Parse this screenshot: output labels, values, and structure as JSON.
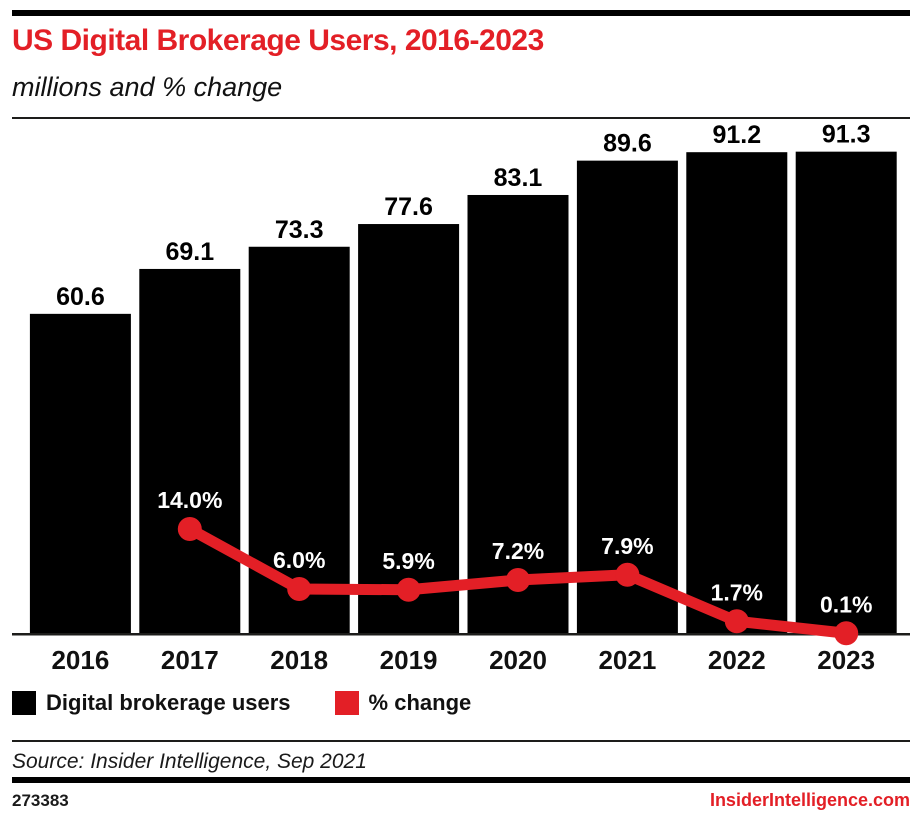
{
  "header": {
    "title": "US Digital Brokerage Users, 2016-2023",
    "subtitle": "millions and % change"
  },
  "chart_data": {
    "type": "bar",
    "categories": [
      "2016",
      "2017",
      "2018",
      "2019",
      "2020",
      "2021",
      "2022",
      "2023"
    ],
    "series": [
      {
        "name": "Digital brokerage users",
        "type": "bar",
        "unit": "millions",
        "color": "#000000",
        "values": [
          60.6,
          69.1,
          73.3,
          77.6,
          83.1,
          89.6,
          91.2,
          91.3
        ],
        "labels": [
          "60.6",
          "69.1",
          "73.3",
          "77.6",
          "83.1",
          "89.6",
          "91.2",
          "91.3"
        ]
      },
      {
        "name": "% change",
        "type": "line",
        "unit": "percent",
        "color": "#e31f26",
        "values": [
          null,
          14.0,
          6.0,
          5.9,
          7.2,
          7.9,
          1.7,
          0.1
        ],
        "labels": [
          null,
          "14.0%",
          "6.0%",
          "5.9%",
          "7.2%",
          "7.9%",
          "1.7%",
          "0.1%"
        ]
      }
    ],
    "title": "US Digital Brokerage Users, 2016-2023",
    "subtitle": "millions and % change",
    "xlabel": "",
    "ylabel": "",
    "bar_axis_range": [
      0,
      95
    ],
    "pct_axis_range": [
      0,
      20
    ],
    "grid": false,
    "legend_position": "bottom",
    "value_labels_shown": true
  },
  "legend": {
    "items": [
      {
        "label": "Digital brokerage users",
        "color": "#000000"
      },
      {
        "label": "% change",
        "color": "#e31f26"
      }
    ]
  },
  "footer": {
    "source": "Source: Insider Intelligence, Sep 2021",
    "chart_id": "273383",
    "site": "InsiderIntelligence.com"
  },
  "colors": {
    "accent_red": "#e31f26",
    "bar_black": "#000000",
    "pct_label_white": "#ffffff",
    "rule_dark": "#1d1d1b"
  }
}
